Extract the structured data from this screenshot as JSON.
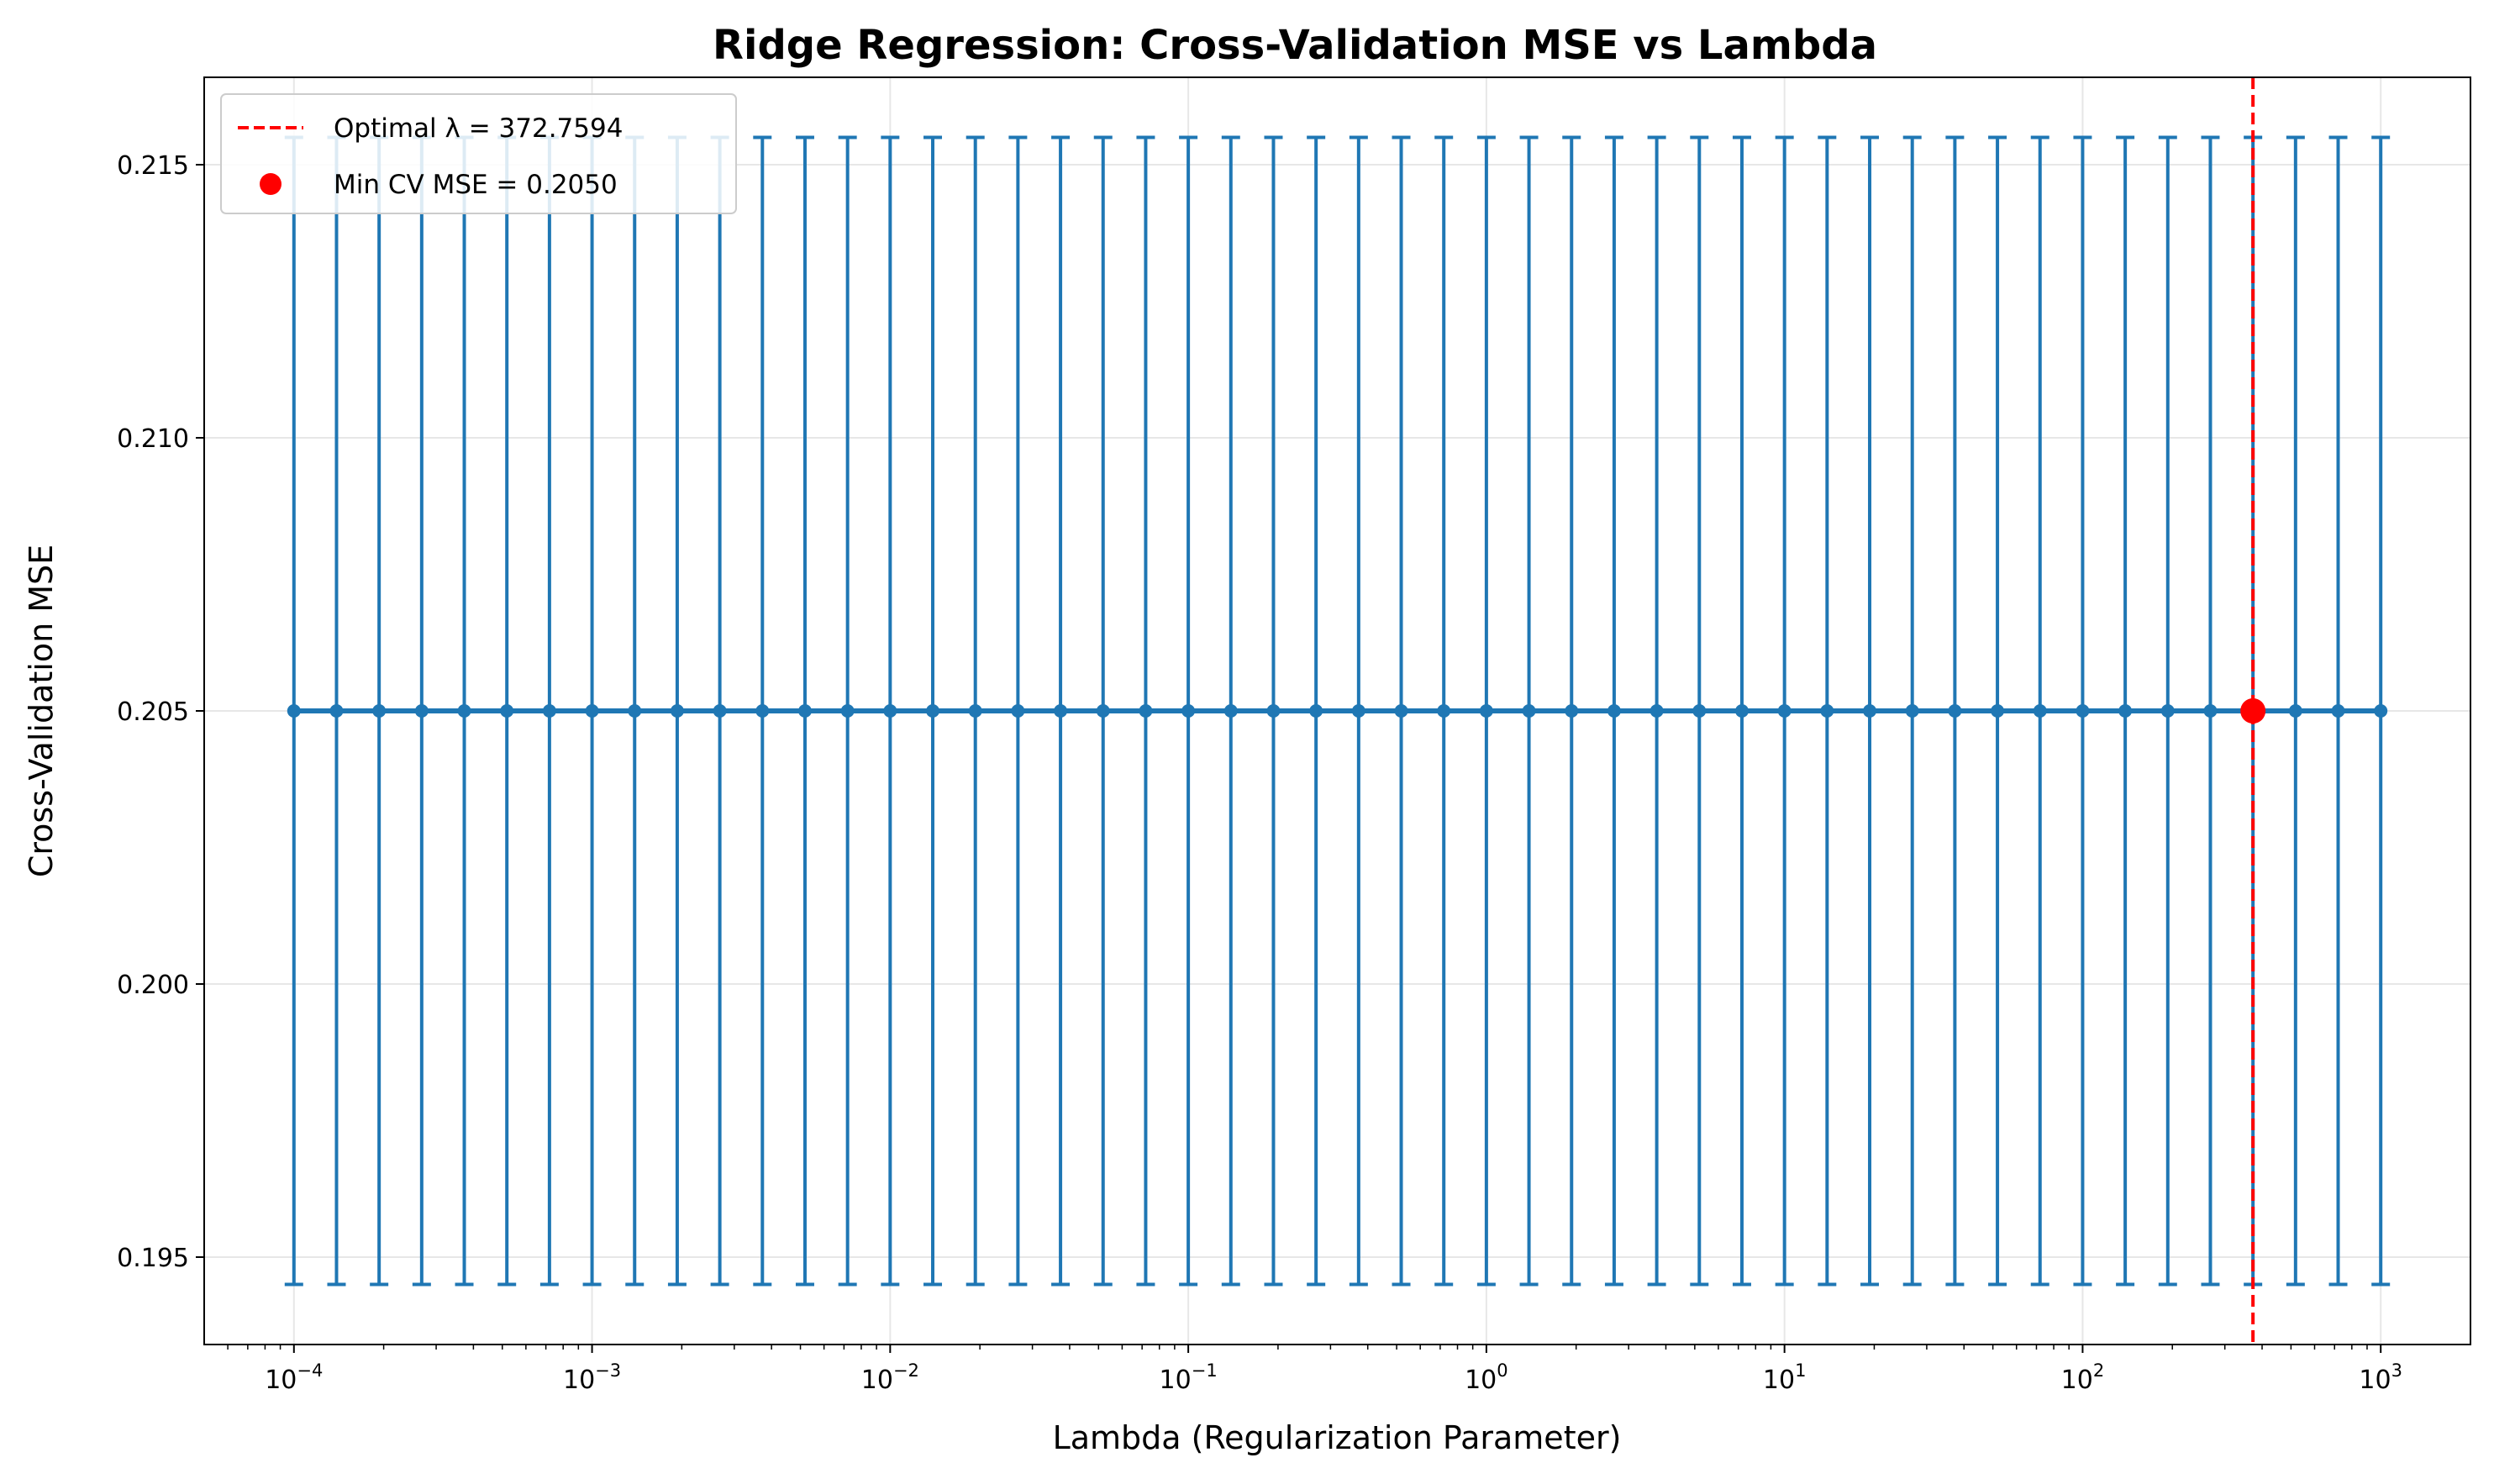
{
  "chart_data": {
    "type": "line",
    "title": "Ridge Regression: Cross-Validation MSE vs Lambda",
    "xlabel": "Lambda (Regularization Parameter)",
    "ylabel": "Cross-Validation MSE",
    "xscale": "log",
    "xlim": [
      5e-05,
      2000
    ],
    "ylim": [
      0.1934,
      0.2166
    ],
    "x_ticks": [
      {
        "base": "10",
        "exp": "−4",
        "value": 0.0001
      },
      {
        "base": "10",
        "exp": "−3",
        "value": 0.001
      },
      {
        "base": "10",
        "exp": "−2",
        "value": 0.01
      },
      {
        "base": "10",
        "exp": "−1",
        "value": 0.1
      },
      {
        "base": "10",
        "exp": "0",
        "value": 1
      },
      {
        "base": "10",
        "exp": "1",
        "value": 10
      },
      {
        "base": "10",
        "exp": "2",
        "value": 100
      },
      {
        "base": "10",
        "exp": "3",
        "value": 1000
      }
    ],
    "y_ticks": [
      "0.195",
      "0.200",
      "0.205",
      "0.210",
      "0.215"
    ],
    "grid": true,
    "legend_position": "top-left",
    "series": [
      {
        "name": "",
        "color": "#1f77b4",
        "x_log10_range": [
          -4,
          3
        ],
        "num_points": 50,
        "y": 0.205,
        "error": 0.0105
      }
    ],
    "optimal_lambda": 372.7594,
    "min_cv_mse": 0.205,
    "optimal_line_color": "#ff0000",
    "legend": [
      {
        "label": "Optimal λ = 372.7594",
        "marker": "dashed-line",
        "color": "#ff0000"
      },
      {
        "label": "Min CV MSE = 0.2050",
        "marker": "circle",
        "color": "#ff0000"
      }
    ]
  }
}
